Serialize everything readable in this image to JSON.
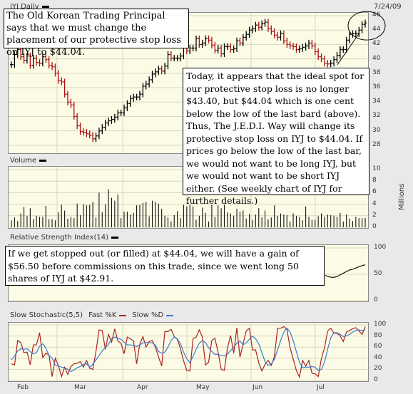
{
  "header": {
    "symbol_title": "IYJ Daily",
    "date": "7/24/09"
  },
  "panels": {
    "price": {
      "title": "IYJ Daily"
    },
    "volume": {
      "title": "Volume",
      "unit_label": "Millions"
    },
    "rsi": {
      "title": "Relative Strength Index(14)"
    },
    "stoch": {
      "title": "Slow Stochastic(5,5)",
      "fast_label": "Fast %K",
      "slow_label": "Slow %D"
    }
  },
  "annotations": {
    "top_note": "The Old Korean Trading Principal says that we must change the placement of our protective stop loss on IYJ to $44.04.",
    "middle_note": "Today, it appears that the ideal spot for our protective stop loss is no longer $43.40, but $44.04 which is one cent below the low of the last bard (above). Thus, The J.E.D.I. Way will change its protective stop loss on IYJ to $44.04. If prices go below the low of the last bar, we would not want to be long IYJ, but we would not want to be short IYJ either. (See weekly chart of IYJ for further details.)",
    "rsi_note": "If we get stopped out (or filled) at $44.04, we will have a gain of $56.50 before commissions on this trade, since we went long 50 shares of IYJ at $42.91."
  },
  "colors": {
    "up": "#000000",
    "down": "#aa1111",
    "fast_k": "#aa2222",
    "slow_d": "#3a7ad0",
    "panel_bg": "#fbfbe6"
  },
  "chart_data": [
    {
      "type": "candlestick",
      "title": "IYJ Daily",
      "ylim": [
        27,
        46
      ],
      "yticks": [
        28,
        30,
        32,
        34,
        36,
        38,
        40,
        42,
        44,
        46
      ],
      "xticks": [
        "Feb",
        "Mar",
        "Apr",
        "May",
        "Jun",
        "Jul"
      ],
      "closes": [
        39.2,
        40.6,
        41.3,
        40.3,
        39.8,
        40.4,
        39.1,
        40.1,
        39.5,
        39.4,
        40.3,
        39.9,
        39.1,
        38.9,
        38.0,
        37.0,
        36.8,
        35.1,
        34.0,
        33.6,
        32.0,
        30.7,
        29.9,
        29.8,
        29.6,
        29.4,
        28.9,
        29.3,
        30.0,
        30.5,
        31.1,
        31.4,
        31.6,
        31.9,
        32.5,
        32.5,
        33.2,
        33.8,
        34.5,
        34.7,
        34.7,
        35.1,
        36.2,
        36.5,
        37.1,
        37.9,
        38.2,
        38.6,
        38.3,
        39.0,
        40.6,
        40.1,
        40.1,
        40.1,
        40.4,
        41.7,
        41.1,
        41.5,
        41.5,
        42.8,
        42.0,
        42.2,
        42.8,
        42.6,
        41.9,
        41.2,
        41.5,
        40.7,
        41.7,
        41.7,
        41.3,
        41.4,
        42.5,
        42.2,
        43.0,
        43.4,
        44.0,
        44.2,
        44.7,
        44.4,
        44.9,
        45.1,
        44.2,
        43.8,
        43.3,
        43.0,
        43.5,
        42.5,
        42.0,
        41.8,
        41.7,
        41.3,
        41.4,
        41.6,
        41.8,
        42.2,
        41.8,
        41.0,
        40.3,
        40.0,
        39.4,
        39.3,
        39.4,
        39.9,
        40.5,
        41.3,
        41.3,
        42.6,
        43.4,
        43.5,
        43.5,
        44.0,
        44.8,
        45.0
      ],
      "annotation_circle_on": "last bars (7/24/09)"
    },
    {
      "type": "bar",
      "title": "Volume",
      "ylabel": "Millions",
      "ylim": [
        0,
        10
      ],
      "yticks": [
        0,
        2,
        4,
        6,
        8,
        10
      ],
      "values": [
        1.2,
        1.7,
        1.1,
        2.4,
        3.5,
        2.0,
        3.3,
        1.4,
        2.0,
        1.8,
        1.8,
        3.7,
        1.4,
        1.4,
        1.2,
        2.6,
        3.9,
        2.9,
        1.5,
        1.8,
        1.6,
        4.1,
        2.1,
        4.0,
        3.8,
        3.9,
        4.4,
        1.7,
        6.0,
        2.6,
        4.0,
        6.6,
        5.1,
        4.6,
        5.7,
        1.6,
        2.7,
        2.7,
        2.2,
        2.5,
        3.8,
        3.9,
        4.2,
        4.4,
        1.9,
        4.6,
        4.4,
        4.1,
        3.2,
        2.0,
        1.7,
        1.0,
        2.1,
        2.8,
        1.6,
        3.9,
        3.6,
        3.9,
        3.6,
        1.3,
        2.0,
        3.4,
        2.5,
        1.0,
        3.9,
        1.8,
        3.8,
        3.3,
        3.9,
        2.6,
        2.4,
        2.0,
        3.2,
        2.7,
        2.9,
        1.5,
        2.3,
        1.3,
        2.2,
        3.3,
        1.7,
        2.9,
        1.4,
        1.7,
        3.8,
        2.0,
        2.4,
        2.2,
        2.1,
        1.0,
        2.4,
        2.0,
        1.8,
        1.2,
        3.6,
        1.8,
        1.3,
        1.3,
        1.9,
        2.4,
        1.8,
        2.2,
        2.1,
        2.0,
        1.8,
        2.5,
        1.0,
        2.2,
        1.5,
        1.1,
        1.8,
        1.6,
        1.6,
        1.6
      ]
    },
    {
      "type": "line",
      "title": "Relative Strength Index(14)",
      "ylim": [
        0,
        100
      ],
      "yticks": [
        0,
        50,
        100
      ],
      "values_visible_tail": [
        48,
        45,
        44,
        46,
        50,
        54,
        58,
        60,
        63,
        66,
        68
      ]
    },
    {
      "type": "line",
      "title": "Slow Stochastic(5,5)",
      "ylim": [
        0,
        100
      ],
      "yticks": [
        0,
        20,
        40,
        60,
        80,
        100
      ],
      "series": [
        {
          "name": "Fast %K",
          "values": [
            30,
            28,
            72,
            68,
            50,
            51,
            28,
            64,
            64,
            86,
            41,
            49,
            46,
            7,
            40,
            27,
            7,
            24,
            11,
            25,
            30,
            31,
            34,
            24,
            36,
            22,
            20,
            52,
            91,
            90,
            56,
            83,
            69,
            93,
            71,
            67,
            48,
            78,
            75,
            71,
            30,
            65,
            79,
            60,
            70,
            72,
            60,
            42,
            26,
            88,
            88,
            92,
            79,
            74,
            57,
            35,
            18,
            17,
            75,
            78,
            91,
            78,
            28,
            33,
            72,
            76,
            51,
            20,
            18,
            58,
            81,
            49,
            95,
            42,
            66,
            89,
            94,
            55,
            55,
            32,
            17,
            29,
            36,
            27,
            43,
            94,
            94,
            97,
            92,
            59,
            39,
            18,
            6,
            36,
            26,
            36,
            13,
            12,
            7,
            39,
            59,
            89,
            94,
            85,
            85,
            80,
            70,
            87,
            90,
            93,
            95,
            89,
            83,
            97
          ]
        },
        {
          "name": "Slow %D",
          "values": [
            37,
            44,
            53,
            57,
            56,
            57,
            52,
            48,
            50,
            62,
            66,
            58,
            45,
            40,
            28,
            26,
            24,
            23,
            20,
            16,
            19,
            23,
            25,
            29,
            30,
            24,
            29,
            37,
            45,
            53,
            59,
            65,
            75,
            78,
            76,
            74,
            69,
            64,
            64,
            63,
            61,
            64,
            68,
            68,
            68,
            68,
            63,
            52,
            49,
            51,
            60,
            72,
            78,
            75,
            66,
            51,
            39,
            32,
            43,
            56,
            67,
            72,
            68,
            59,
            52,
            47,
            47,
            45,
            44,
            47,
            54,
            60,
            67,
            71,
            64,
            68,
            74,
            80,
            75,
            66,
            50,
            34,
            27,
            30,
            38,
            55,
            72,
            87,
            94,
            87,
            72,
            52,
            33,
            23,
            24,
            24,
            25,
            24,
            18,
            20,
            33,
            56,
            77,
            86,
            86,
            83,
            79,
            80,
            83,
            87,
            90,
            91,
            90,
            91
          ]
        }
      ]
    }
  ]
}
